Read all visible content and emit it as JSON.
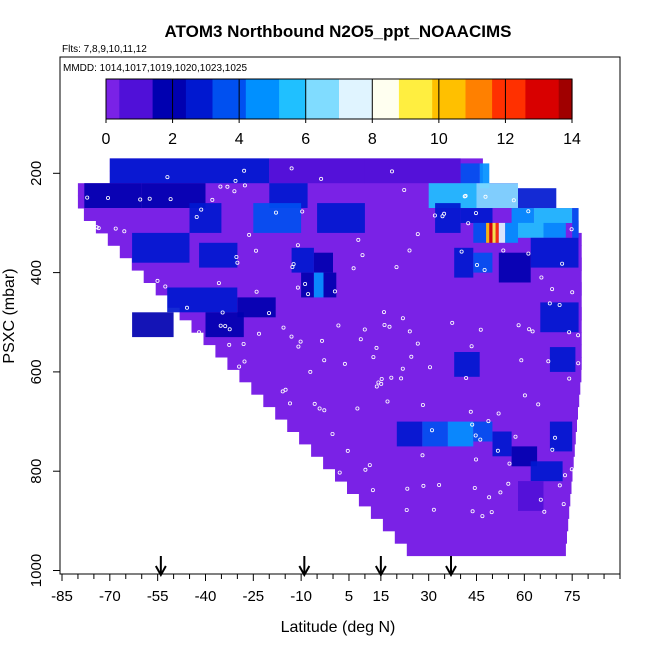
{
  "chart_data": {
    "type": "heatmap",
    "title": "ATOM3 Northbound N2O5_ppt_NOAACIMS",
    "flights_label": "Flts: 7,8,9,10,11,12",
    "dates_label": "MMDD: 1014,1017,1019,1020,1023,1025",
    "xlabel": "Latitude (deg N)",
    "ylabel": "PSXC (mbar)",
    "xlim": [
      -85,
      90
    ],
    "ylim": [
      1000,
      0
    ],
    "x_ticks": [
      -85,
      -70,
      -55,
      -40,
      -25,
      -10,
      5,
      15,
      30,
      45,
      60,
      75
    ],
    "y_ticks": [
      200,
      400,
      600,
      800,
      1000
    ],
    "colorbar": {
      "min": 0,
      "max": 14,
      "ticks": [
        0,
        2,
        4,
        6,
        8,
        10,
        12,
        14
      ],
      "colors": [
        "#7a22e6",
        "#5010d8",
        "#0000b0",
        "#0018d0",
        "#0050f0",
        "#0090ff",
        "#20c0ff",
        "#80dcff",
        "#e0f4ff",
        "#fffff0",
        "#ffee40",
        "#ffc000",
        "#ff8000",
        "#ff3000",
        "#d80000",
        "#a00000"
      ],
      "stripe_values": [
        0.5,
        1.5,
        2.5,
        3.5,
        4.5,
        5.5,
        6.5,
        7.5,
        8.5,
        9.5,
        10.5,
        11.5,
        12.5,
        13.5
      ]
    },
    "flight_markers_lat": [
      -54,
      -9,
      15,
      37
    ],
    "background_value": 0.3,
    "cells": [
      {
        "lat": [
          -70,
          -20
        ],
        "p": [
          170,
          220
        ],
        "v": 2.5
      },
      {
        "lat": [
          -20,
          10
        ],
        "p": [
          170,
          220
        ],
        "v": 1.4
      },
      {
        "lat": [
          10,
          40
        ],
        "p": [
          170,
          220
        ],
        "v": 1.2
      },
      {
        "lat": [
          40,
          46
        ],
        "p": [
          180,
          220
        ],
        "v": 3.5
      },
      {
        "lat": [
          46,
          49
        ],
        "p": [
          180,
          230
        ],
        "v": 4.5
      },
      {
        "lat": [
          -78,
          -60
        ],
        "p": [
          220,
          270
        ],
        "v": 2.0
      },
      {
        "lat": [
          -60,
          -40
        ],
        "p": [
          220,
          270
        ],
        "v": 1.5
      },
      {
        "lat": [
          -20,
          -8
        ],
        "p": [
          220,
          270
        ],
        "v": 2.8
      },
      {
        "lat": [
          30,
          45
        ],
        "p": [
          220,
          270
        ],
        "v": 5.5
      },
      {
        "lat": [
          45,
          58
        ],
        "p": [
          220,
          270
        ],
        "v": 6.5
      },
      {
        "lat": [
          58,
          70
        ],
        "p": [
          230,
          270
        ],
        "v": 3.0
      },
      {
        "lat": [
          -45,
          -35
        ],
        "p": [
          260,
          320
        ],
        "v": 3.0
      },
      {
        "lat": [
          -25,
          -10
        ],
        "p": [
          260,
          320
        ],
        "v": 3.5
      },
      {
        "lat": [
          -5,
          10
        ],
        "p": [
          260,
          320
        ],
        "v": 2.5
      },
      {
        "lat": [
          32,
          40
        ],
        "p": [
          260,
          320
        ],
        "v": 2.8
      },
      {
        "lat": [
          40,
          50
        ],
        "p": [
          270,
          300
        ],
        "v": 3.2
      },
      {
        "lat": [
          56,
          63
        ],
        "p": [
          270,
          300
        ],
        "v": 4.5
      },
      {
        "lat": [
          63,
          75
        ],
        "p": [
          270,
          300
        ],
        "v": 6.0
      },
      {
        "lat": [
          75,
          77
        ],
        "p": [
          270,
          330
        ],
        "v": 4.0
      },
      {
        "lat": [
          44,
          48
        ],
        "p": [
          300,
          340
        ],
        "v": 4.0
      },
      {
        "lat": [
          48,
          49
        ],
        "p": [
          300,
          340
        ],
        "v": 10.5
      },
      {
        "lat": [
          49,
          50
        ],
        "p": [
          300,
          340
        ],
        "v": 13.0
      },
      {
        "lat": [
          50,
          51
        ],
        "p": [
          300,
          340
        ],
        "v": 9.0
      },
      {
        "lat": [
          51,
          52
        ],
        "p": [
          300,
          340
        ],
        "v": 12.5
      },
      {
        "lat": [
          52,
          54
        ],
        "p": [
          300,
          340
        ],
        "v": 7.0
      },
      {
        "lat": [
          54,
          58
        ],
        "p": [
          300,
          340
        ],
        "v": 5.0
      },
      {
        "lat": [
          58,
          66
        ],
        "p": [
          300,
          330
        ],
        "v": 5.5
      },
      {
        "lat": [
          66,
          73
        ],
        "p": [
          300,
          330
        ],
        "v": 4.5
      },
      {
        "lat": [
          -63,
          -45
        ],
        "p": [
          320,
          380
        ],
        "v": 2.8
      },
      {
        "lat": [
          -42,
          -30
        ],
        "p": [
          340,
          390
        ],
        "v": 2.5
      },
      {
        "lat": [
          -13,
          -6
        ],
        "p": [
          350,
          400
        ],
        "v": 3.0
      },
      {
        "lat": [
          -6,
          0
        ],
        "p": [
          360,
          400
        ],
        "v": 2.2
      },
      {
        "lat": [
          38,
          44
        ],
        "p": [
          350,
          410
        ],
        "v": 2.5
      },
      {
        "lat": [
          44,
          50
        ],
        "p": [
          360,
          400
        ],
        "v": 3.5
      },
      {
        "lat": [
          -10,
          -6
        ],
        "p": [
          400,
          450
        ],
        "v": 2.0
      },
      {
        "lat": [
          -6,
          -3
        ],
        "p": [
          400,
          450
        ],
        "v": 4.5
      },
      {
        "lat": [
          -3,
          1
        ],
        "p": [
          400,
          450
        ],
        "v": 2.2
      },
      {
        "lat": [
          -52,
          -30
        ],
        "p": [
          430,
          480
        ],
        "v": 2.5
      },
      {
        "lat": [
          -30,
          -18
        ],
        "p": [
          450,
          490
        ],
        "v": 1.6
      },
      {
        "lat": [
          62,
          77
        ],
        "p": [
          330,
          390
        ],
        "v": 2.8
      },
      {
        "lat": [
          52,
          62
        ],
        "p": [
          360,
          420
        ],
        "v": 2.2
      },
      {
        "lat": [
          -63,
          -50
        ],
        "p": [
          480,
          530
        ],
        "v": 2.0
      },
      {
        "lat": [
          -40,
          -28
        ],
        "p": [
          480,
          530
        ],
        "v": 1.8
      },
      {
        "lat": [
          65,
          77
        ],
        "p": [
          460,
          520
        ],
        "v": 3.0
      },
      {
        "lat": [
          38,
          46
        ],
        "p": [
          560,
          610
        ],
        "v": 2.5
      },
      {
        "lat": [
          68,
          76
        ],
        "p": [
          550,
          600
        ],
        "v": 3.0
      },
      {
        "lat": [
          20,
          28
        ],
        "p": [
          700,
          750
        ],
        "v": 2.8
      },
      {
        "lat": [
          28,
          36
        ],
        "p": [
          700,
          750
        ],
        "v": 3.5
      },
      {
        "lat": [
          36,
          44
        ],
        "p": [
          700,
          750
        ],
        "v": 5.0
      },
      {
        "lat": [
          44,
          50
        ],
        "p": [
          700,
          740
        ],
        "v": 3.5
      },
      {
        "lat": [
          50,
          56
        ],
        "p": [
          720,
          770
        ],
        "v": 2.5
      },
      {
        "lat": [
          56,
          64
        ],
        "p": [
          750,
          790
        ],
        "v": 2.2
      },
      {
        "lat": [
          62,
          72
        ],
        "p": [
          780,
          820
        ],
        "v": 2.6
      },
      {
        "lat": [
          68,
          75
        ],
        "p": [
          700,
          760
        ],
        "v": 3.0
      },
      {
        "lat": [
          58,
          66
        ],
        "p": [
          820,
          880
        ],
        "v": 1.3
      }
    ]
  }
}
